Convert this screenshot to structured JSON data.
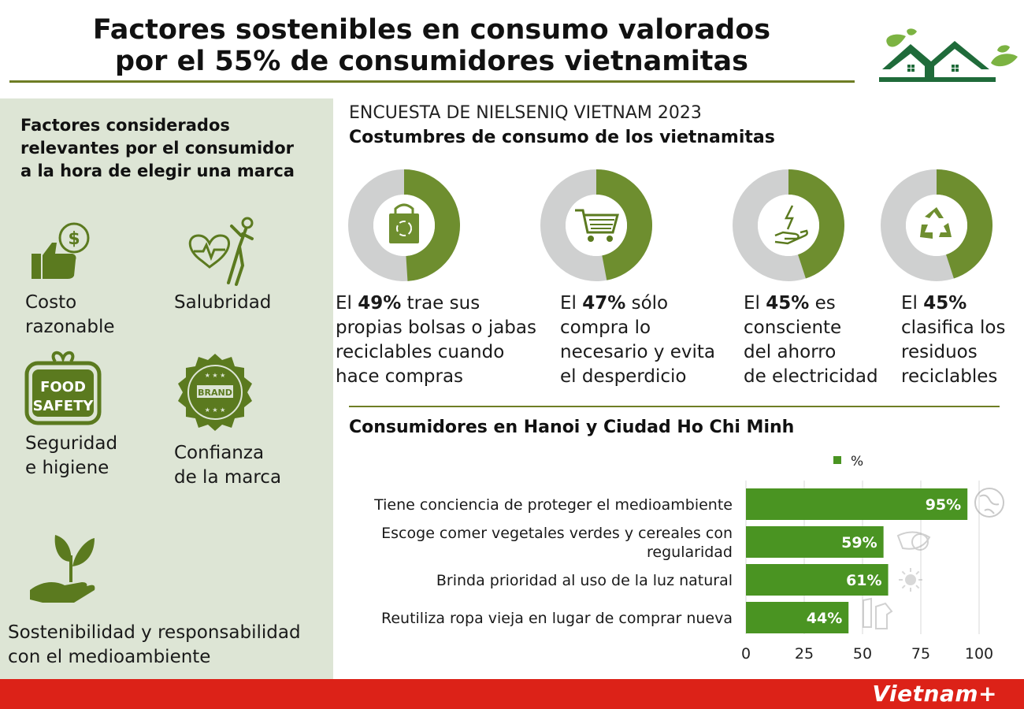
{
  "title_line1": "Factores sostenibles en consumo valorados",
  "title_line2": "por el 55% de consumidores vietnamitas",
  "left": {
    "heading_line1": "Factores considerados",
    "heading_line2": "relevantes por el consumidor",
    "heading_line3": "a la hora de elegir una marca",
    "factors": [
      {
        "icon": "thumbs-up-dollar-icon",
        "line1": "Costo",
        "line2": "razonable"
      },
      {
        "icon": "heart-fitness-icon",
        "line1": "Salubridad",
        "line2": ""
      },
      {
        "icon": "food-safety-badge-icon",
        "line1": "Seguridad",
        "line2": "e higiene",
        "badge_line1": "FOOD",
        "badge_line2": "SAFETY"
      },
      {
        "icon": "brand-seal-icon",
        "line1": "Confianza",
        "line2": "de la marca",
        "badge": "BRAND"
      },
      {
        "icon": "hand-plant-icon",
        "line1": "Sostenibilidad y responsabilidad",
        "line2": "con el medioambiente"
      }
    ]
  },
  "survey": {
    "title": "ENCUESTA DE NIELSENIQ VIETNAM 2023",
    "subtitle": "Costumbres de consumo de los vietnamitas",
    "stats": [
      {
        "icon": "recycle-bag-icon",
        "prefix": "El ",
        "value": "49%",
        "l1": " trae sus",
        "l2": "propias bolsas o jabas",
        "l3": "reciclables cuando",
        "l4": "hace compras"
      },
      {
        "icon": "shopping-cart-icon",
        "prefix": "El ",
        "value": "47%",
        "l1": " sólo",
        "l2": "compra lo",
        "l3": "necesario y evita",
        "l4": "el desperdicio"
      },
      {
        "icon": "hand-energy-icon",
        "prefix": "El ",
        "value": "45%",
        "l1": " es",
        "l2": "consciente",
        "l3": "del ahorro",
        "l4": "de electricidad"
      },
      {
        "icon": "recycle-icon",
        "prefix": "El ",
        "value": "45%",
        "l1": "",
        "l2": "clasifica los",
        "l3": "residuos",
        "l4": "reciclables"
      }
    ]
  },
  "hcm_title": "Consumidores en Hanoi y Ciudad Ho Chi Minh",
  "chart_data": [
    {
      "type": "pie",
      "categories": [
        "trae sus propias bolsas o jabas reciclables cuando hace compras",
        "sólo compra lo necesario y evita el desperdicio",
        "es consciente del ahorro de electricidad",
        "clasifica los residuos reciclables"
      ],
      "values": [
        49,
        47,
        45,
        45
      ],
      "colors": {
        "filled": "#6e8e2f",
        "remainder": "#cfd0d0"
      }
    },
    {
      "type": "bar",
      "orientation": "horizontal",
      "categories": [
        "Tiene conciencia de proteger el medioambiente",
        "Escoge comer vegetales verdes y cereales con regularidad",
        "Brinda prioridad al uso de la luz natural",
        "Reutiliza ropa vieja en lugar de comprar nueva"
      ],
      "values": [
        95,
        59,
        61,
        44
      ],
      "value_labels": [
        "95%",
        "59%",
        "61%",
        "44%"
      ],
      "category_lines": [
        [
          "Tiene conciencia de proteger el medioambiente"
        ],
        [
          "Escoge comer vegetales verdes y cereales con",
          "regularidad"
        ],
        [
          "Brinda prioridad al uso de la luz natural"
        ],
        [
          "Reutiliza ropa vieja en lugar de comprar nueva"
        ]
      ],
      "series": [
        {
          "name": "%",
          "values": [
            95,
            59,
            61,
            44
          ]
        }
      ],
      "xlim": [
        0,
        100
      ],
      "xticks": [
        "0",
        "25",
        "50",
        "75",
        "100"
      ],
      "legend": "top",
      "grid": true,
      "color": "#4a9422",
      "row_icons": [
        "globe-icon",
        "vegetables-icon",
        "sun-icon",
        "clothes-icon"
      ]
    }
  ],
  "footer_brand": "Vietnam+",
  "colors": {
    "accent": "#6e7d24",
    "olive": "#6e8e2f",
    "bar_green": "#4a9422",
    "panel": "#dde5d5",
    "footer_red": "#dc2218",
    "logo_green": "#1f6b3a"
  }
}
